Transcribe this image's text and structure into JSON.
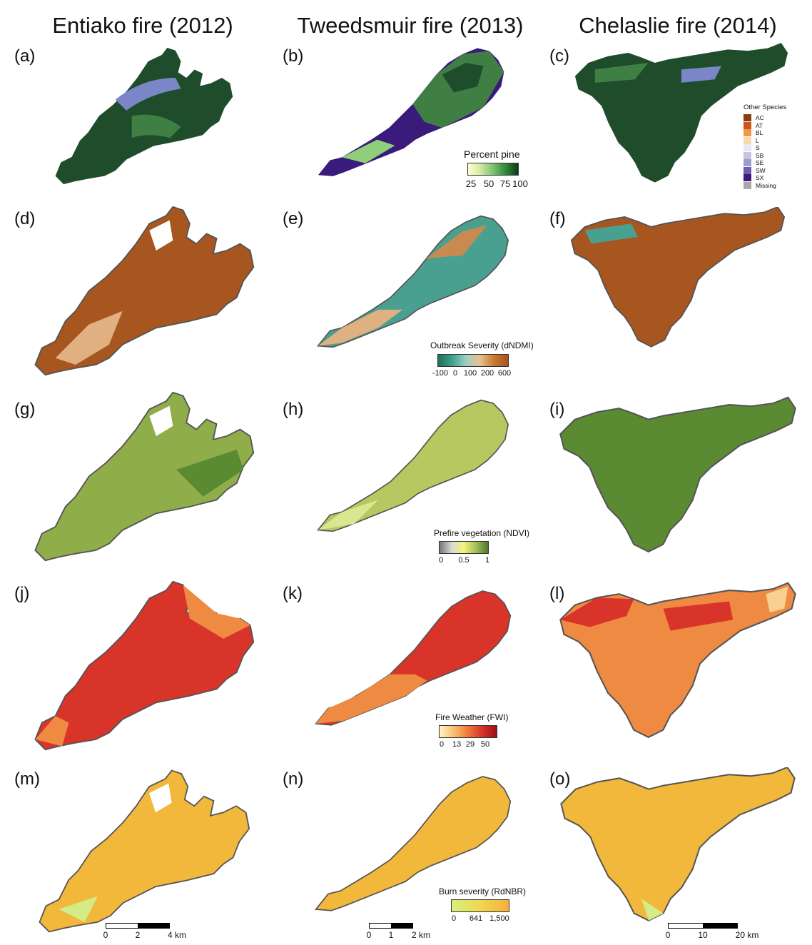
{
  "columns": [
    "Entiako fire (2012)",
    "Tweedsmuir fire (2013)",
    "Chelaslie fire (2014)"
  ],
  "panels": [
    "(a)",
    "(b)",
    "(c)",
    "(d)",
    "(e)",
    "(f)",
    "(g)",
    "(h)",
    "(i)",
    "(j)",
    "(k)",
    "(l)",
    "(m)",
    "(n)",
    "(o)"
  ],
  "legends": {
    "pine": {
      "title": "Percent pine",
      "ticks": [
        "25",
        "50",
        "75",
        "100"
      ],
      "colors": [
        "#fffed0",
        "#cfeaa0",
        "#7fc070",
        "#2e8a3c",
        "#0b3d1c"
      ]
    },
    "dndmi": {
      "title": "Outbreak Severity (dNDMI)",
      "ticks": [
        "-100",
        "0",
        "100",
        "200",
        "600"
      ],
      "colors": [
        "#1f6e5a",
        "#3fa08a",
        "#9fcfc0",
        "#e8c090",
        "#c87a30",
        "#a55420"
      ]
    },
    "ndvi": {
      "title": "Prefire vegetation (NDVI)",
      "ticks": [
        "0",
        "0.5",
        "1"
      ],
      "colors": [
        "#777777",
        "#d8d8d8",
        "#f4f47a",
        "#a4c05a",
        "#4e7a28"
      ]
    },
    "fwi": {
      "title": "Fire Weather (FWI)",
      "ticks": [
        "0",
        "13",
        "29",
        "50"
      ],
      "colors": [
        "#fff4c8",
        "#f8c070",
        "#ee7a3a",
        "#d8302a",
        "#9a1016"
      ]
    },
    "rdnbr": {
      "title": "Burn severity (RdNBR)",
      "ticks": [
        "0",
        "641",
        "1,500"
      ],
      "colors": [
        "#d8f080",
        "#f0d850",
        "#f5b03a"
      ]
    }
  },
  "species": {
    "title": "Other Species",
    "items": [
      {
        "label": "AC",
        "color": "#8c3b10"
      },
      {
        "label": "AT",
        "color": "#c75a18"
      },
      {
        "label": "BL",
        "color": "#ee9a48"
      },
      {
        "label": "L",
        "color": "#f7d8b0"
      },
      {
        "label": "S",
        "color": "#e8e8f2"
      },
      {
        "label": "SB",
        "color": "#c6c6e4"
      },
      {
        "label": "SE",
        "color": "#9c9ccc"
      },
      {
        "label": "SW",
        "color": "#6a5fae"
      },
      {
        "label": "SX",
        "color": "#3a1a7a"
      },
      {
        "label": "Missing",
        "color": "#a8a8a8"
      }
    ]
  },
  "scalebars": [
    {
      "ticks": [
        "0",
        "2",
        "4 km"
      ]
    },
    {
      "ticks": [
        "0",
        "1",
        "2 km"
      ]
    },
    {
      "ticks": [
        "0",
        "10",
        "20 km"
      ]
    }
  ],
  "map_colors": {
    "pine_dark": "#1f4d2b",
    "pine_mid": "#3f7f44",
    "pine_light": "#8fcf7a",
    "pine_pale": "#c8e8a8",
    "spruce": "#3a1a7a",
    "water": "#7a86c8",
    "dndmi_high": "#a8561f",
    "dndmi_mid": "#e0b080",
    "dndmi_low": "#4aa090",
    "ndvi_high": "#5a8a32",
    "ndvi_mid": "#8fae4a",
    "ndvi_low": "#d8e890",
    "fwi_high": "#d8342a",
    "fwi_mid": "#ee8a42",
    "fwi_low": "#f8d090",
    "rdnbr_high": "#f2b83c",
    "rdnbr_low": "#d4ec88",
    "outline": "#555555"
  }
}
